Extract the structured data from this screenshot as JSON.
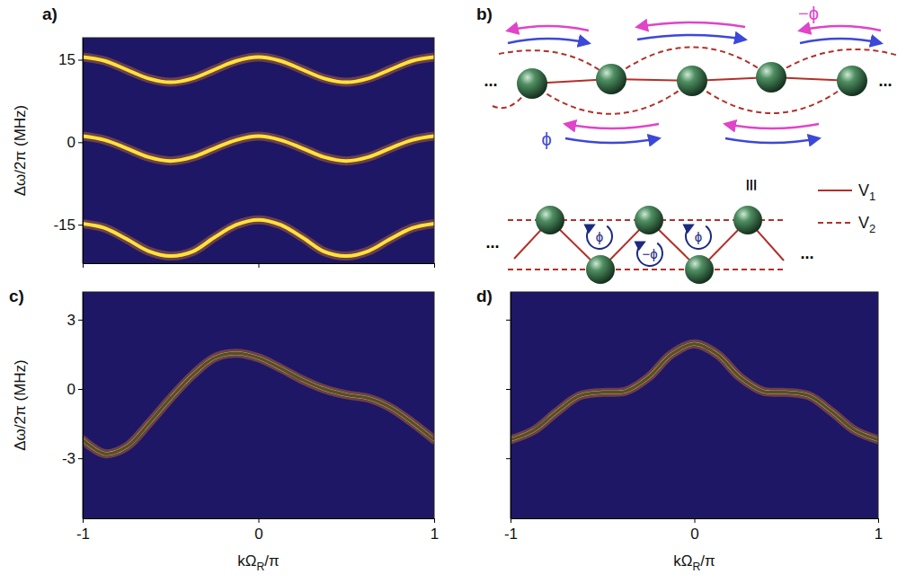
{
  "chart_data": [
    {
      "type": "line",
      "title": "a)",
      "ylabel": "Δω/2π (MHz)",
      "x": [
        -1,
        -0.875,
        -0.75,
        -0.625,
        -0.5,
        -0.375,
        -0.25,
        -0.125,
        0,
        0.125,
        0.25,
        0.375,
        0.5,
        0.625,
        0.75,
        0.875,
        1
      ],
      "xlim": [
        -1,
        1
      ],
      "xticks": [
        -1,
        0,
        1
      ],
      "ylim": [
        -22,
        19
      ],
      "yticks": [
        -15,
        0,
        15
      ],
      "tick_labels": "y",
      "series": [
        {
          "color": "#ffe23a",
          "line_style": "glow",
          "values": [
            15.5,
            14.8,
            13.2,
            11.6,
            10.9,
            11.6,
            13.2,
            14.8,
            15.5,
            14.8,
            13.2,
            11.6,
            10.9,
            11.6,
            13.2,
            14.8,
            15.5
          ]
        },
        {
          "color": "#ffe23a",
          "line_style": "glow",
          "values": [
            1.1,
            0.4,
            -1.1,
            -2.7,
            -3.4,
            -2.7,
            -1.1,
            0.4,
            1.1,
            0.4,
            -1.1,
            -2.7,
            -3.4,
            -2.7,
            -1.1,
            0.4,
            1.1
          ]
        },
        {
          "color": "#ffe23a",
          "line_style": "glow",
          "values": [
            -14.8,
            -15.6,
            -17.6,
            -19.8,
            -20.7,
            -19.9,
            -17.3,
            -15.0,
            -14.1,
            -15.0,
            -17.3,
            -19.9,
            -20.7,
            -19.8,
            -17.6,
            -15.6,
            -14.8
          ]
        }
      ]
    },
    {
      "type": "line",
      "title": "c)",
      "ylabel": "Δω/2π (MHz)",
      "xlabel": "kΩR/π",
      "x": [
        -1,
        -0.875,
        -0.75,
        -0.625,
        -0.5,
        -0.375,
        -0.25,
        -0.125,
        0,
        0.125,
        0.25,
        0.375,
        0.5,
        0.625,
        0.75,
        0.875,
        1
      ],
      "xlim": [
        -1,
        1
      ],
      "xticks": [
        -1,
        0,
        1
      ],
      "ylim": [
        -5.6,
        4.2
      ],
      "yticks": [
        -3,
        0,
        3
      ],
      "series": [
        {
          "color": "#ffe23a",
          "line_style": "glow",
          "values": [
            -2.2,
            -2.8,
            -2.5,
            -1.5,
            -0.4,
            0.6,
            1.35,
            1.55,
            1.35,
            0.9,
            0.4,
            0.0,
            -0.25,
            -0.4,
            -0.8,
            -1.45,
            -2.2
          ]
        },
        {
          "color": "#2a2a2a",
          "line_style": "solid",
          "values": [
            -2.2,
            -2.8,
            -2.5,
            -1.5,
            -0.4,
            0.6,
            1.35,
            1.55,
            1.35,
            0.9,
            0.4,
            0.0,
            -0.25,
            -0.4,
            -0.8,
            -1.45,
            -2.2
          ]
        }
      ]
    },
    {
      "type": "line",
      "title": "d)",
      "xlabel": "kΩR/π",
      "x": [
        -1,
        -0.875,
        -0.75,
        -0.625,
        -0.5,
        -0.375,
        -0.25,
        -0.125,
        0,
        0.125,
        0.25,
        0.375,
        0.5,
        0.625,
        0.75,
        0.875,
        1
      ],
      "xlim": [
        -1,
        1
      ],
      "xticks": [
        -1,
        0,
        1
      ],
      "ylim": [
        -5.6,
        4.2
      ],
      "yticks": [
        -3,
        0,
        3
      ],
      "tick_labels": "x",
      "series": [
        {
          "color": "#ffe23a",
          "line_style": "glow",
          "values": [
            -2.2,
            -1.8,
            -1.0,
            -0.3,
            -0.15,
            -0.1,
            0.5,
            1.5,
            1.95,
            1.5,
            0.5,
            -0.1,
            -0.15,
            -0.3,
            -1.0,
            -1.8,
            -2.2
          ]
        },
        {
          "color": "#2a2a2a",
          "line_style": "solid",
          "values": [
            -2.2,
            -1.8,
            -1.0,
            -0.3,
            -0.15,
            -0.1,
            0.5,
            1.5,
            1.95,
            1.5,
            0.5,
            -0.1,
            -0.15,
            -0.3,
            -1.0,
            -1.8,
            -2.2
          ]
        }
      ]
    }
  ],
  "diagram": {
    "title": "b)",
    "top_flux": "−ϕ",
    "bottom_flux": "ϕ",
    "equivalence": "≡",
    "ellipsis": "...",
    "plaquette_fluxes": [
      "ϕ",
      "−ϕ",
      "ϕ"
    ],
    "legend": [
      {
        "label": "V1",
        "line_style": "solid"
      },
      {
        "label": "V2",
        "line_style": "dashed"
      }
    ]
  }
}
